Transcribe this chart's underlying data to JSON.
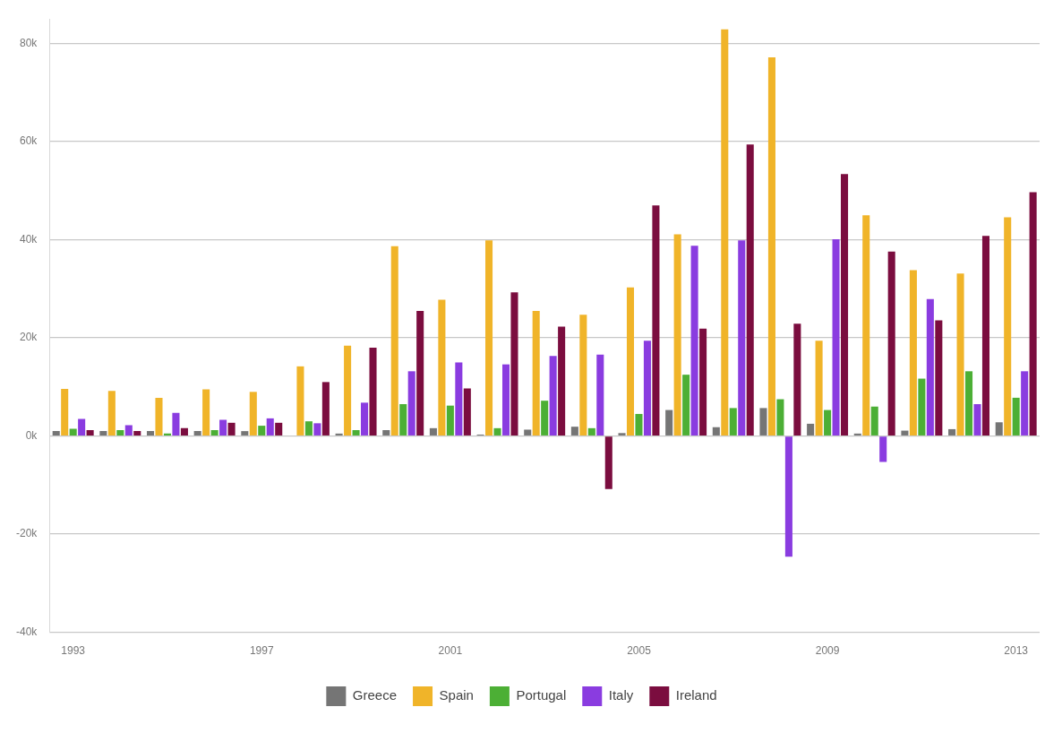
{
  "chart_data": {
    "type": "bar",
    "categories": [
      "1993",
      null,
      null,
      null,
      "1997",
      null,
      null,
      null,
      "2001",
      null,
      null,
      null,
      "2005",
      null,
      null,
      null,
      "2009",
      null,
      null,
      null,
      "2013"
    ],
    "series": [
      {
        "name": "Greece",
        "color": "#757575",
        "values": [
          1000,
          1000,
          1000,
          1000,
          1000,
          0,
          500,
          1200,
          1600,
          300,
          1300,
          1900,
          600,
          5300,
          1800,
          5700,
          2500,
          500,
          1100,
          1400,
          2800
        ]
      },
      {
        "name": "Spain",
        "color": "#f0b429",
        "values": [
          9600,
          9200,
          7800,
          9500,
          9000,
          14200,
          18400,
          38700,
          27800,
          39900,
          25500,
          24700,
          30300,
          41100,
          82900,
          77200,
          19400,
          45000,
          33800,
          33100,
          44600
        ]
      },
      {
        "name": "Portugal",
        "color": "#4caf35",
        "values": [
          1500,
          1200,
          500,
          1200,
          2100,
          3000,
          1200,
          6500,
          6200,
          1600,
          7200,
          1600,
          4500,
          12500,
          5700,
          7500,
          5300,
          6000,
          11700,
          13200,
          7800
        ]
      },
      {
        "name": "Italy",
        "color": "#8a3ce0",
        "values": [
          3500,
          2200,
          4700,
          3300,
          3600,
          2600,
          6800,
          13200,
          15000,
          14600,
          16300,
          16600,
          19400,
          38800,
          39900,
          -24600,
          40100,
          -5300,
          27900,
          6500,
          13200
        ]
      },
      {
        "name": "Ireland",
        "color": "#7b0d3f",
        "values": [
          1200,
          1000,
          1600,
          2700,
          2700,
          11000,
          18000,
          25500,
          9700,
          29300,
          22300,
          -10800,
          47000,
          21900,
          59400,
          22900,
          53400,
          37600,
          23600,
          40800,
          49700
        ]
      }
    ],
    "ylim": [
      -40000,
      85000
    ],
    "yticks": [
      {
        "value": -40000,
        "label": "-40k"
      },
      {
        "value": -20000,
        "label": "-20k"
      },
      {
        "value": 0,
        "label": "0k"
      },
      {
        "value": 20000,
        "label": "20k"
      },
      {
        "value": 40000,
        "label": "40k"
      },
      {
        "value": 60000,
        "label": "60k"
      },
      {
        "value": 80000,
        "label": "80k"
      }
    ],
    "grid": "y",
    "legend": "bottom"
  }
}
